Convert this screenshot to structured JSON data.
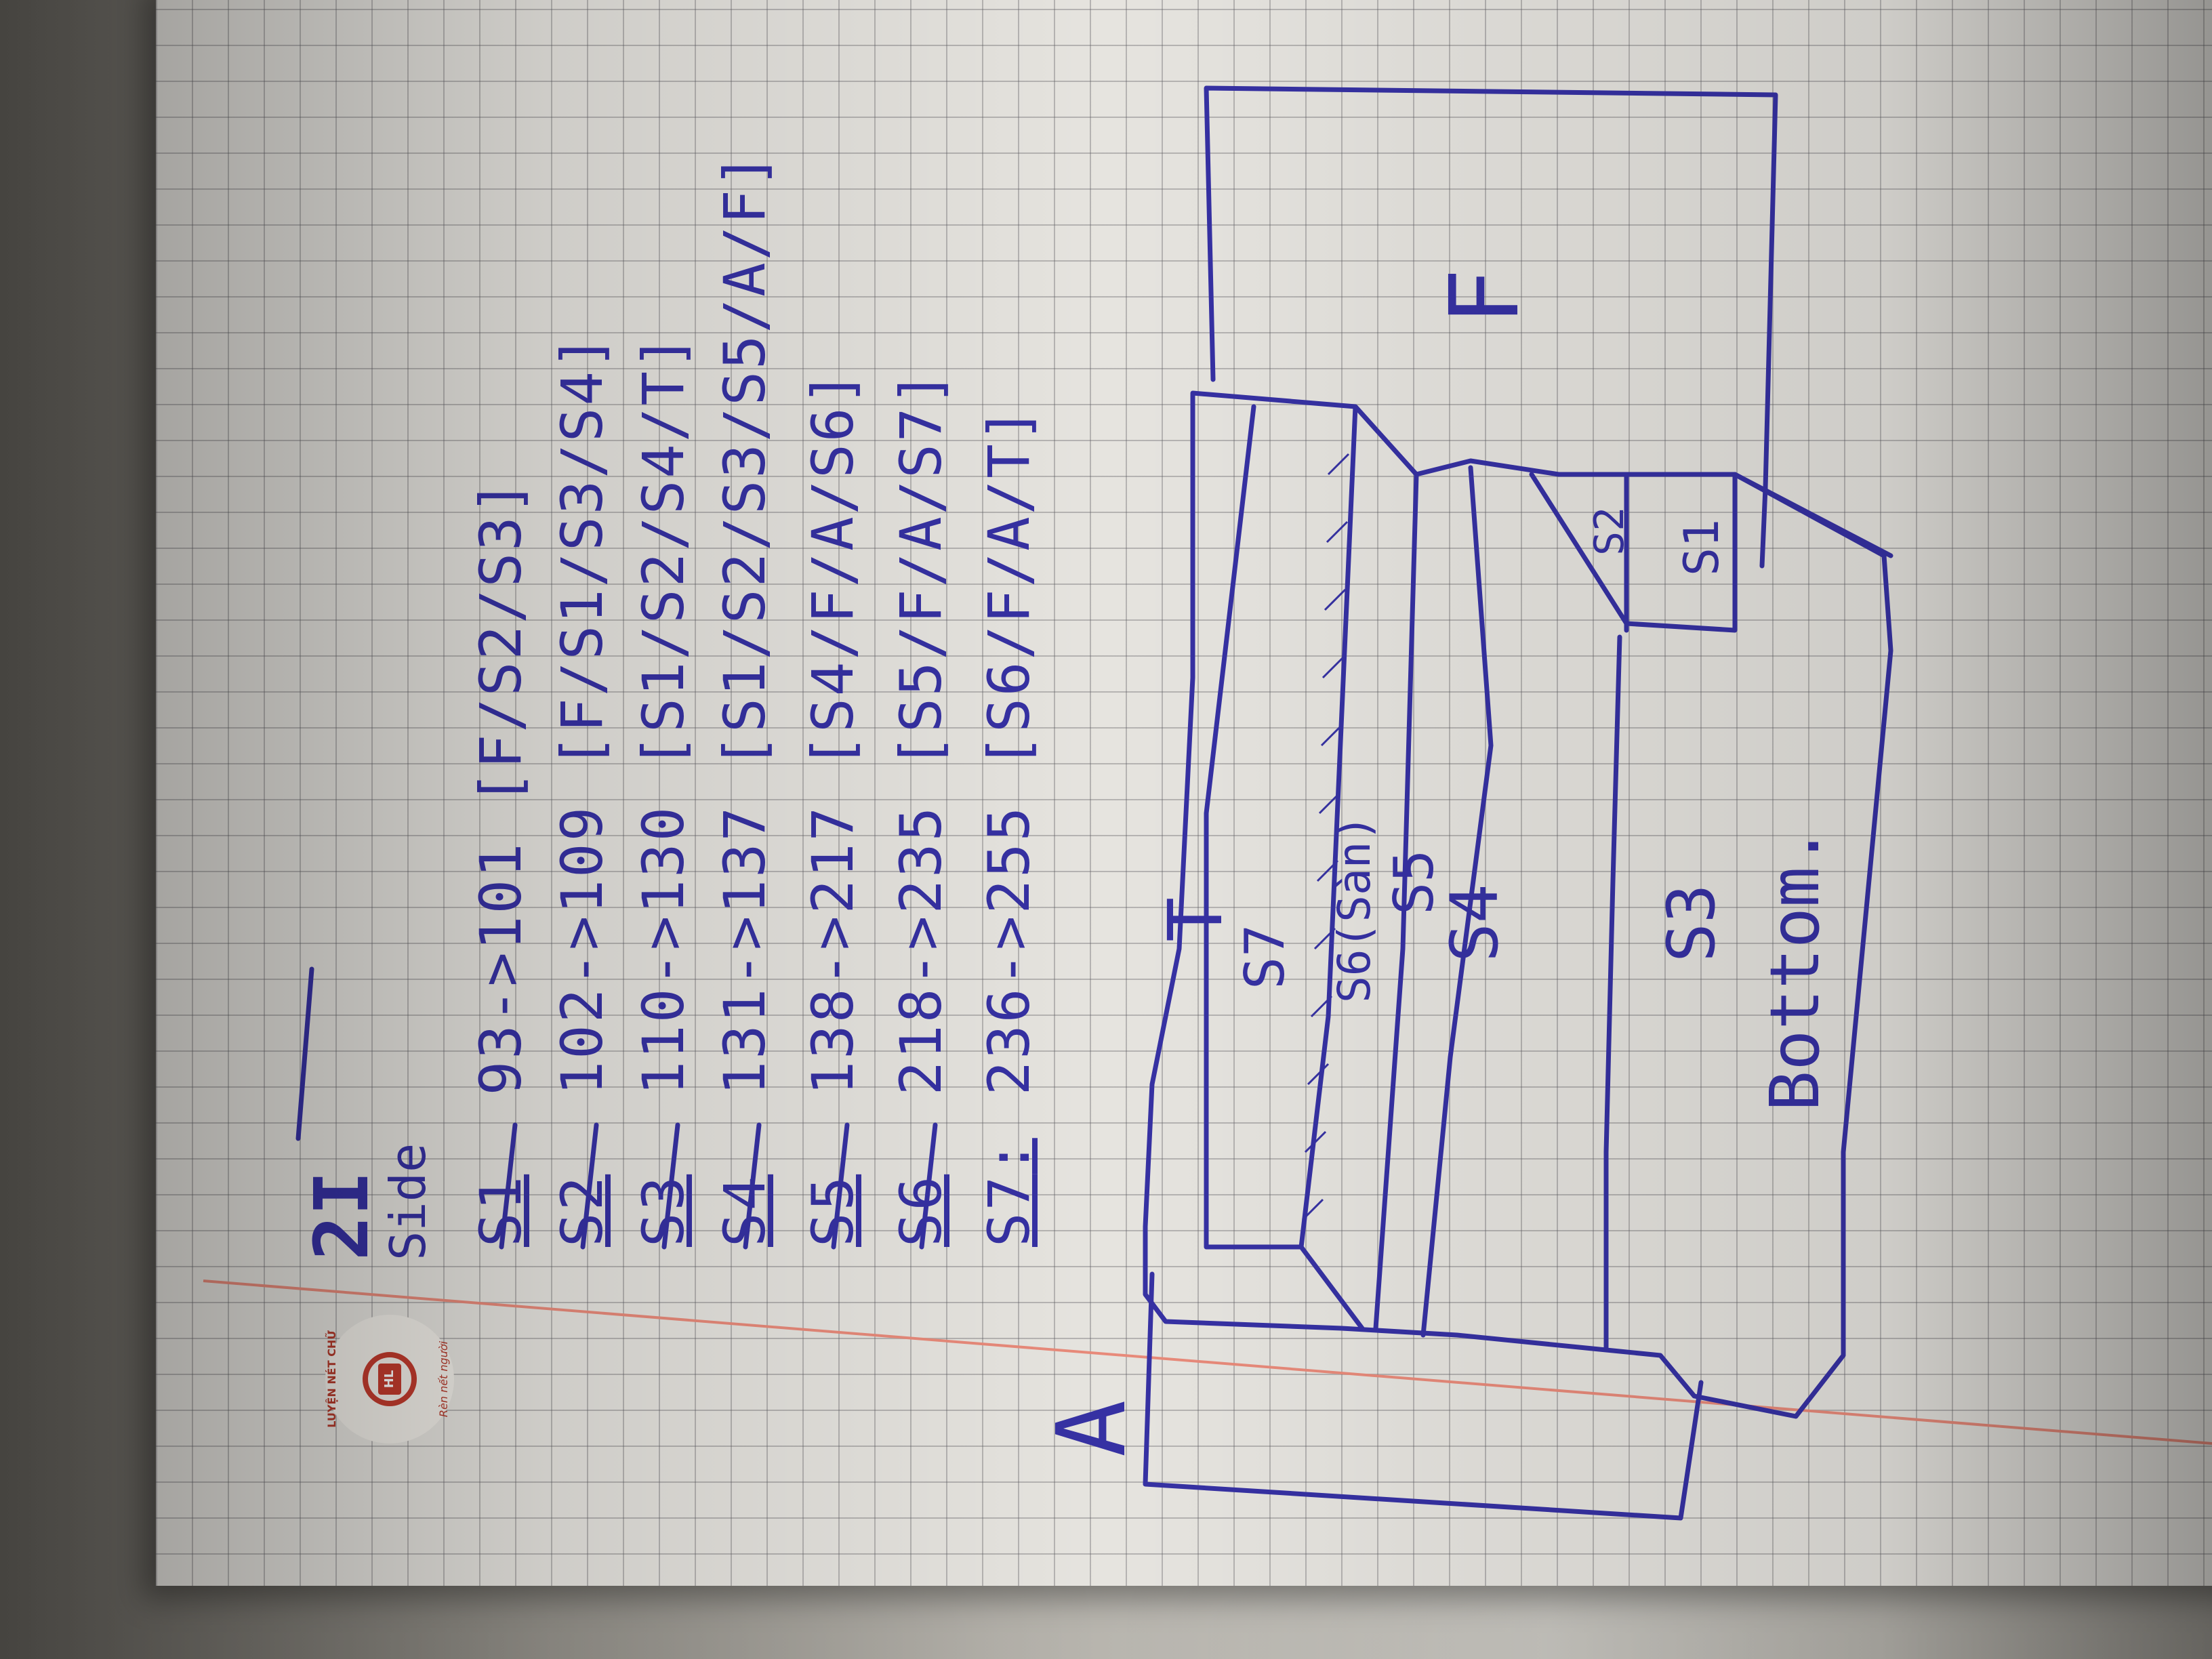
{
  "page": {
    "heading": "2I",
    "side_label": "Side"
  },
  "segments": [
    {
      "id": "S1",
      "range": "93->101",
      "neighbors": "[F/S2/S3]"
    },
    {
      "id": "S2",
      "range": "102->109",
      "neighbors": "[F/S1/S3/S4]"
    },
    {
      "id": "S3",
      "range": "110->130",
      "neighbors": "[S1/S2/S4/T]"
    },
    {
      "id": "S4",
      "range": "131->137",
      "neighbors": "[S1/S2/S3/S5/A/F]"
    },
    {
      "id": "S5",
      "range": "138->217",
      "neighbors": "[S4/F/A/S6]"
    },
    {
      "id": "S6",
      "range": "218->235",
      "neighbors": "[S5/F/A/S7]"
    },
    {
      "id": "S7",
      "range": "236->255",
      "neighbors": "[S6/F/A/T]"
    }
  ],
  "segment_separator": ":",
  "diagram": {
    "labels": {
      "top": "T",
      "front": "F",
      "back": "A",
      "s7": "S7",
      "s6": "S6(Sàn)",
      "s5": "S5",
      "s4": "S4",
      "s3": "S3",
      "s2": "S2",
      "s1": "S1",
      "bottom": "Bottom."
    }
  },
  "logo": {
    "ring_top": "LUYỆN NÉT CHỮ",
    "ring_bottom": "Rèn nết người",
    "initials": "HL"
  },
  "colors": {
    "ink": "#3631a3",
    "margin_line": "#e88a7a",
    "logo_red": "#c23b2d",
    "grid": "#8c8c92"
  }
}
